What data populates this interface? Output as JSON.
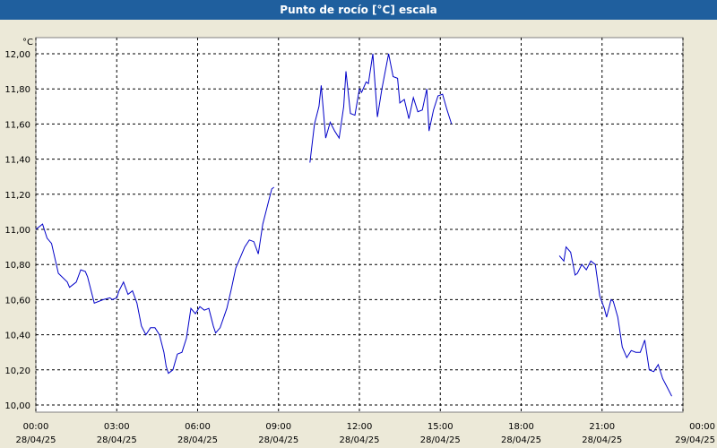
{
  "window": {
    "title": "Punto de rocío [°C] escala"
  },
  "colors": {
    "titlebar": "#1f5f9e",
    "series": "#0000c8",
    "grid": "#000000",
    "plot_bg": "#ffffff",
    "window_bg": "#ece9d8"
  },
  "chart_data": {
    "type": "line",
    "title": "Punto de rocío [°C] escala",
    "ylabel": "°C",
    "xlabel": "",
    "ylim": [
      10.0,
      12.0
    ],
    "xlim_hours": [
      0,
      24
    ],
    "grid": true,
    "y_ticks": [
      "10,00",
      "10,20",
      "10,40",
      "10,60",
      "10,80",
      "11,00",
      "11,20",
      "11,40",
      "11,60",
      "11,80",
      "12,00"
    ],
    "x_ticks": [
      {
        "time": "00:00",
        "date": "28/04/25"
      },
      {
        "time": "03:00",
        "date": "28/04/25"
      },
      {
        "time": "06:00",
        "date": "28/04/25"
      },
      {
        "time": "09:00",
        "date": "28/04/25"
      },
      {
        "time": "12:00",
        "date": "28/04/25"
      },
      {
        "time": "15:00",
        "date": "28/04/25"
      },
      {
        "time": "18:00",
        "date": "28/04/25"
      },
      {
        "time": "21:00",
        "date": "28/04/25"
      },
      {
        "time": "00:00",
        "date": "29/04/25"
      }
    ],
    "series": [
      {
        "segments": [
          [
            [
              "00:00",
              11.0
            ],
            [
              "00:15",
              11.03
            ],
            [
              "00:25",
              10.95
            ],
            [
              "00:35",
              10.92
            ],
            [
              "00:50",
              10.75
            ],
            [
              "01:10",
              10.7
            ],
            [
              "01:15",
              10.67
            ],
            [
              "01:30",
              10.7
            ],
            [
              "01:40",
              10.77
            ],
            [
              "01:50",
              10.76
            ],
            [
              "01:55",
              10.73
            ],
            [
              "02:00",
              10.68
            ],
            [
              "02:10",
              10.58
            ],
            [
              "02:30",
              10.6
            ],
            [
              "02:45",
              10.61
            ],
            [
              "02:50",
              10.6
            ],
            [
              "03:00",
              10.61
            ],
            [
              "03:05",
              10.65
            ],
            [
              "03:15",
              10.7
            ],
            [
              "03:25",
              10.63
            ],
            [
              "03:35",
              10.65
            ],
            [
              "03:45",
              10.58
            ],
            [
              "03:55",
              10.45
            ],
            [
              "04:05",
              10.4
            ],
            [
              "04:15",
              10.44
            ],
            [
              "04:25",
              10.44
            ],
            [
              "04:35",
              10.4
            ],
            [
              "04:45",
              10.3
            ],
            [
              "04:50",
              10.22
            ],
            [
              "04:55",
              10.18
            ],
            [
              "05:05",
              10.2
            ],
            [
              "05:15",
              10.29
            ],
            [
              "05:25",
              10.3
            ],
            [
              "05:35",
              10.38
            ],
            [
              "05:45",
              10.55
            ],
            [
              "05:55",
              10.52
            ],
            [
              "06:05",
              10.56
            ],
            [
              "06:15",
              10.54
            ],
            [
              "06:25",
              10.55
            ],
            [
              "06:35",
              10.45
            ],
            [
              "06:40",
              10.41
            ],
            [
              "06:50",
              10.44
            ],
            [
              "07:05",
              10.55
            ],
            [
              "07:15",
              10.66
            ],
            [
              "07:25",
              10.78
            ],
            [
              "07:35",
              10.84
            ],
            [
              "07:45",
              10.9
            ],
            [
              "07:55",
              10.94
            ],
            [
              "08:05",
              10.93
            ],
            [
              "08:15",
              10.86
            ],
            [
              "08:25",
              11.03
            ],
            [
              "08:35",
              11.13
            ],
            [
              "08:45",
              11.23
            ],
            [
              "08:50",
              11.24
            ]
          ],
          [
            [
              "10:10",
              11.38
            ],
            [
              "10:20",
              11.6
            ],
            [
              "10:30",
              11.7
            ],
            [
              "10:35",
              11.82
            ],
            [
              "10:45",
              11.52
            ],
            [
              "10:55",
              11.61
            ],
            [
              "11:05",
              11.56
            ],
            [
              "11:15",
              11.52
            ],
            [
              "11:25",
              11.7
            ],
            [
              "11:30",
              11.9
            ],
            [
              "11:40",
              11.66
            ],
            [
              "11:50",
              11.65
            ],
            [
              "12:00",
              11.8
            ],
            [
              "12:05",
              11.78
            ],
            [
              "12:15",
              11.84
            ],
            [
              "12:20",
              11.83
            ],
            [
              "12:30",
              12.0
            ],
            [
              "12:40",
              11.64
            ],
            [
              "12:50",
              11.8
            ],
            [
              "13:05",
              12.0
            ],
            [
              "13:15",
              11.87
            ],
            [
              "13:25",
              11.86
            ],
            [
              "13:30",
              11.72
            ],
            [
              "13:40",
              11.74
            ],
            [
              "13:50",
              11.63
            ],
            [
              "14:00",
              11.75
            ],
            [
              "14:10",
              11.67
            ],
            [
              "14:20",
              11.68
            ],
            [
              "14:30",
              11.8
            ],
            [
              "14:35",
              11.56
            ],
            [
              "14:45",
              11.68
            ],
            [
              "14:55",
              11.76
            ],
            [
              "15:05",
              11.77
            ],
            [
              "15:15",
              11.68
            ],
            [
              "15:25",
              11.6
            ]
          ],
          [
            [
              "19:25",
              10.85
            ],
            [
              "19:35",
              10.82
            ],
            [
              "19:40",
              10.9
            ],
            [
              "19:50",
              10.87
            ],
            [
              "20:00",
              10.74
            ],
            [
              "20:05",
              10.75
            ],
            [
              "20:15",
              10.8
            ],
            [
              "20:25",
              10.77
            ],
            [
              "20:35",
              10.82
            ],
            [
              "20:45",
              10.8
            ],
            [
              "20:55",
              10.62
            ],
            [
              "21:05",
              10.55
            ],
            [
              "21:10",
              10.5
            ],
            [
              "21:20",
              10.6
            ],
            [
              "21:25",
              10.59
            ],
            [
              "21:35",
              10.5
            ],
            [
              "21:45",
              10.33
            ],
            [
              "21:55",
              10.27
            ],
            [
              "22:05",
              10.31
            ],
            [
              "22:15",
              10.3
            ],
            [
              "22:25",
              10.3
            ],
            [
              "22:35",
              10.37
            ],
            [
              "22:45",
              10.2
            ],
            [
              "22:55",
              10.19
            ],
            [
              "23:05",
              10.23
            ],
            [
              "23:15",
              10.15
            ],
            [
              "23:25",
              10.1
            ],
            [
              "23:35",
              10.05
            ]
          ]
        ]
      }
    ]
  }
}
